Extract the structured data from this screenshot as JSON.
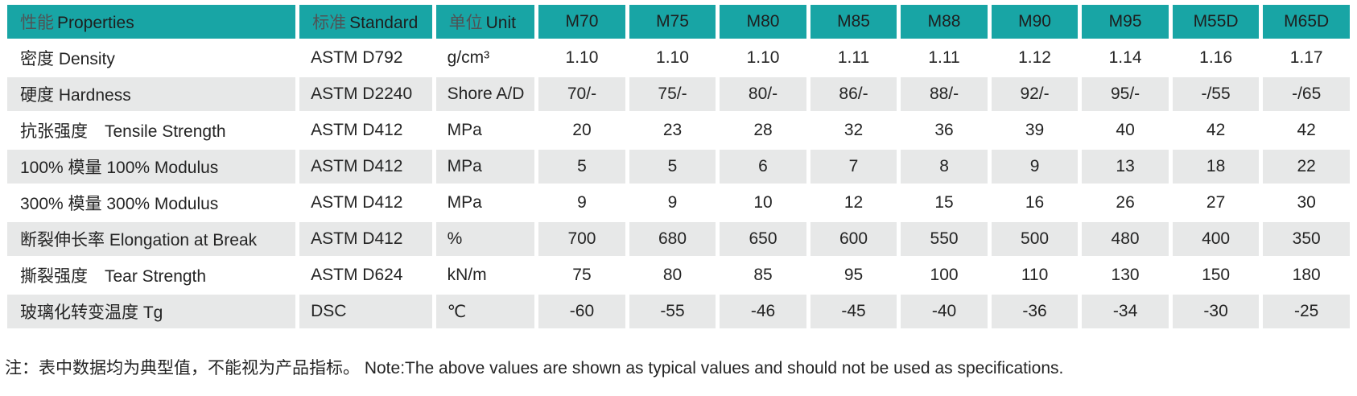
{
  "palette": {
    "header_teal": "#18a5a5",
    "row_alt_gray": "#e7e8e8",
    "text": "#242424",
    "header_chinese_gray": "#4e5456"
  },
  "table": {
    "header": {
      "properties": {
        "zh": "性能",
        "en": "Properties"
      },
      "standard": {
        "zh": "标准",
        "en": "Standard"
      },
      "unit": {
        "zh": "单位",
        "en": "Unit"
      },
      "grades": [
        "M70",
        "M75",
        "M80",
        "M85",
        "M88",
        "M90",
        "M95",
        "M55D",
        "M65D"
      ]
    },
    "rows": [
      {
        "property": "密度 Density",
        "standard": "ASTM D792",
        "unit": "g/cm³",
        "values": [
          "1.10",
          "1.10",
          "1.10",
          "1.11",
          "1.11",
          "1.12",
          "1.14",
          "1.16",
          "1.17"
        ]
      },
      {
        "property": "硬度 Hardness",
        "standard": "ASTM D2240",
        "unit": "Shore A/D",
        "values": [
          "70/-",
          "75/-",
          "80/-",
          "86/-",
          "88/-",
          "92/-",
          "95/-",
          "-/55",
          "-/65"
        ]
      },
      {
        "property": "抗张强度　Tensile Strength",
        "standard": "ASTM D412",
        "unit": "MPa",
        "values": [
          "20",
          "23",
          "28",
          "32",
          "36",
          "39",
          "40",
          "42",
          "42"
        ]
      },
      {
        "property": "100% 模量 100% Modulus",
        "standard": "ASTM D412",
        "unit": "MPa",
        "values": [
          "5",
          "5",
          "6",
          "7",
          "8",
          "9",
          "13",
          "18",
          "22"
        ]
      },
      {
        "property": "300% 模量 300% Modulus",
        "standard": "ASTM D412",
        "unit": "MPa",
        "values": [
          "9",
          "9",
          "10",
          "12",
          "15",
          "16",
          "26",
          "27",
          "30"
        ]
      },
      {
        "property": "断裂伸长率 Elongation at Break",
        "standard": "ASTM D412",
        "unit": "%",
        "values": [
          "700",
          "680",
          "650",
          "600",
          "550",
          "500",
          "480",
          "400",
          "350"
        ]
      },
      {
        "property": "撕裂强度　Tear Strength",
        "standard": "ASTM D624",
        "unit": "kN/m",
        "values": [
          "75",
          "80",
          "85",
          "95",
          "100",
          "110",
          "130",
          "150",
          "180"
        ]
      },
      {
        "property": "玻璃化转变温度 Tg",
        "standard": "DSC",
        "unit": "℃",
        "values": [
          "-60",
          "-55",
          "-46",
          "-45",
          "-40",
          "-36",
          "-34",
          "-30",
          "-25"
        ]
      }
    ],
    "note": "注：表中数据均为典型值，不能视为产品指标。 Note:The above values are shown as typical values and should not be used as specifications."
  }
}
